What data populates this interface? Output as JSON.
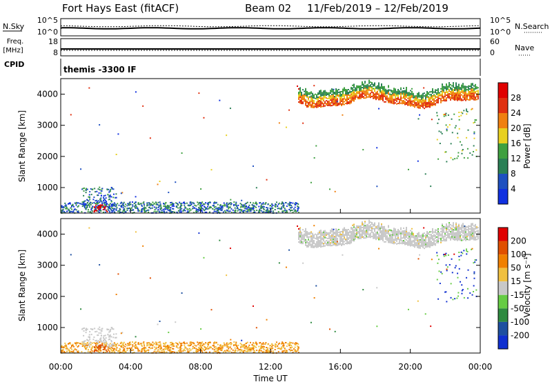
{
  "header": {
    "station": "Fort Hays East (fitACF)",
    "beam": "Beam 02",
    "dates": "11/Feb/2019 – 12/Feb/2019"
  },
  "top_panels": {
    "nsky_label": "N.Sky",
    "nsky_ticks": [
      "10^5",
      "10^0"
    ],
    "nsearch_label": "N.Search",
    "nsearch_ticks": [
      "10^5",
      "10^0"
    ],
    "freq_label_1": "Freq.",
    "freq_label_2": "[MHz]",
    "freq_ticks": [
      "18",
      "8"
    ],
    "nave_label": "Nave",
    "nave_ticks": [
      "60",
      "0"
    ],
    "cpid_label": "CPID",
    "cpid_value": "themis -3300 IF"
  },
  "chart_data": [
    {
      "type": "heatmap",
      "name": "power",
      "ylabel": "Slant Range [km]",
      "ylim": [
        180,
        4500
      ],
      "yticks": [
        "4000",
        "3000",
        "2000",
        "1000"
      ],
      "colorbar_label": "Power [dB]",
      "colorbar_ticks": [
        "28",
        "24",
        "20",
        "16",
        "12",
        "8",
        "4"
      ],
      "colors": [
        "#1030e0",
        "#1e50c0",
        "#2a7f55",
        "#3fa040",
        "#e8d020",
        "#f08010",
        "#e03010",
        "#e00000"
      ]
    },
    {
      "type": "heatmap",
      "name": "velocity",
      "ylabel": "Slant Range [km]",
      "ylim": [
        180,
        4500
      ],
      "yticks": [
        "4000",
        "3000",
        "2000",
        "1000"
      ],
      "colorbar_label": "Velocity [m s⁻¹]",
      "colorbar_ticks": [
        "200",
        "100",
        "50",
        "15",
        "-15",
        "-50",
        "-100",
        "-200"
      ],
      "colors": [
        "#1030d0",
        "#1e50a0",
        "#2e8a40",
        "#66cc44",
        "#c8c8c8",
        "#f0c040",
        "#f08000",
        "#e05000",
        "#e00000"
      ],
      "xlabel": "Time UT",
      "xticks": [
        "00:00",
        "04:00",
        "08:00",
        "12:00",
        "16:00",
        "20:00",
        "00:00"
      ]
    }
  ]
}
